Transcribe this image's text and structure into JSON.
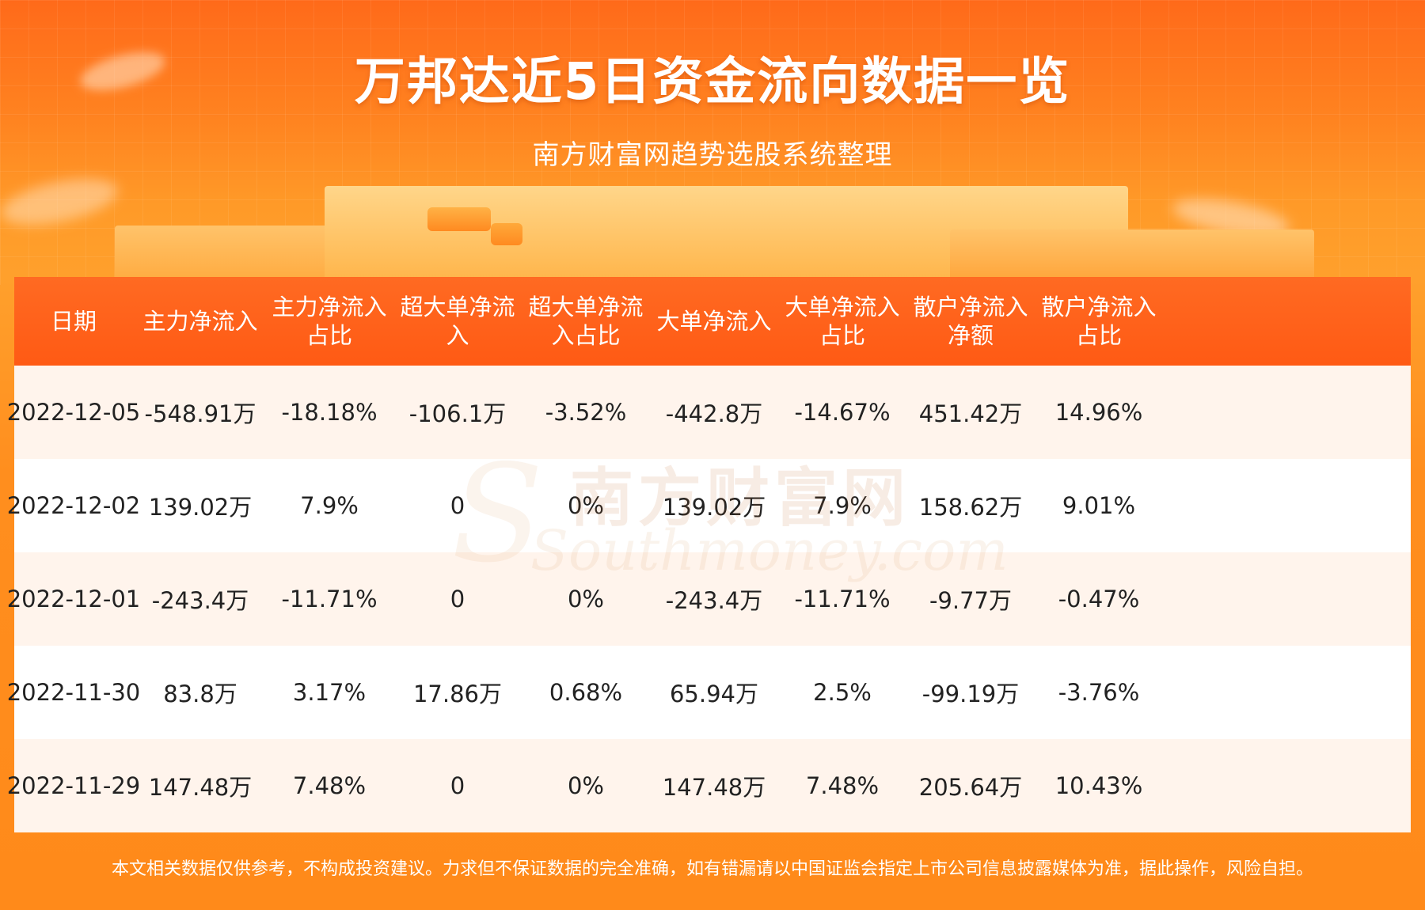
{
  "header": {
    "title": "万邦达近5日资金流向数据一览",
    "subtitle": "南方财富网趋势选股系统整理"
  },
  "watermark": {
    "text_cn": "南方财富网",
    "text_en": "Southmoney.com"
  },
  "table": {
    "columns": [
      [
        "日期"
      ],
      [
        "主力净流入"
      ],
      [
        "主力净流入",
        "占比"
      ],
      [
        "超大单净流",
        "入"
      ],
      [
        "超大单净流",
        "入占比"
      ],
      [
        "大单净流入"
      ],
      [
        "大单净流入",
        "占比"
      ],
      [
        "散户净流入",
        "净额"
      ],
      [
        "散户净流入",
        "占比"
      ]
    ],
    "rows": [
      [
        "2022-12-05",
        "-548.91万",
        "-18.18%",
        "-106.1万",
        "-3.52%",
        "-442.8万",
        "-14.67%",
        "451.42万",
        "14.96%"
      ],
      [
        "2022-12-02",
        "139.02万",
        "7.9%",
        "0",
        "0%",
        "139.02万",
        "7.9%",
        "158.62万",
        "9.01%"
      ],
      [
        "2022-12-01",
        "-243.4万",
        "-11.71%",
        "0",
        "0%",
        "-243.4万",
        "-11.71%",
        "-9.77万",
        "-0.47%"
      ],
      [
        "2022-11-30",
        "83.8万",
        "3.17%",
        "17.86万",
        "0.68%",
        "65.94万",
        "2.5%",
        "-99.19万",
        "-3.76%"
      ],
      [
        "2022-11-29",
        "147.48万",
        "7.48%",
        "0",
        "0%",
        "147.48万",
        "7.48%",
        "205.64万",
        "10.43%"
      ]
    ]
  },
  "footer": {
    "disclaimer": "本文相关数据仅供参考，不构成投资建议。力求但不保证数据的完全准确，如有错漏请以中国证监会指定上市公司信息披露媒体为准，据此操作，风险自担。"
  },
  "colors": {
    "header_bg": "#ff5a14",
    "row_alt_bg": "#fff4ec",
    "page_bg": "#ff8a1a"
  }
}
